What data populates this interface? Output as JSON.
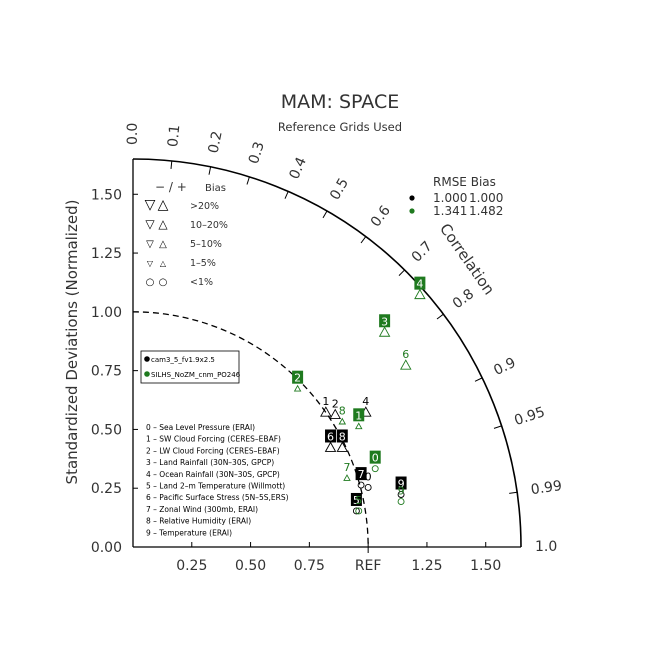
{
  "chart_data": {
    "type": "scatter",
    "subtype": "taylor-diagram",
    "title": "MAM: SPACE",
    "subtitle": "Reference Grids Used",
    "ylabel": "Standardized Deviations (Normalized)",
    "arc_label": "Correlation",
    "ref_label": "REF",
    "std_max": 1.65,
    "x_ticks": [
      "0.25",
      "0.50",
      "0.75",
      "REF",
      "1.25",
      "1.50"
    ],
    "x_tick_values": [
      0.25,
      0.5,
      0.75,
      1.0,
      1.25,
      1.5
    ],
    "y_ticks": [
      "0.00",
      "0.25",
      "0.50",
      "0.75",
      "1.00",
      "1.25",
      "1.50"
    ],
    "y_tick_values": [
      0,
      0.25,
      0.5,
      0.75,
      1.0,
      1.25,
      1.5
    ],
    "corr_ticks": [
      {
        "label": "0.0",
        "value": 0.0
      },
      {
        "label": "0.1",
        "value": 0.1
      },
      {
        "label": "0.2",
        "value": 0.2
      },
      {
        "label": "0.3",
        "value": 0.3
      },
      {
        "label": "0.4",
        "value": 0.4
      },
      {
        "label": "0.5",
        "value": 0.5
      },
      {
        "label": "0.6",
        "value": 0.6
      },
      {
        "label": "0.7",
        "value": 0.7
      },
      {
        "label": "0.8",
        "value": 0.8
      },
      {
        "label": "0.9",
        "value": 0.9
      },
      {
        "label": "0.95",
        "value": 0.95
      },
      {
        "label": "0.99",
        "value": 0.99
      },
      {
        "label": "1.0",
        "value": 1.0
      }
    ],
    "ref_arc_std": 1.0,
    "colors": {
      "black": "#000000",
      "green": "#1f7a1f",
      "box_text": "#ffffff"
    },
    "bias_legend": {
      "header_sign": "− / +",
      "header": "Bias",
      "rows": [
        {
          "label": ">20%",
          "minus": "▽",
          "plus": "△",
          "size": 12
        },
        {
          "label": "10–20%",
          "minus": "▽",
          "plus": "△",
          "size": 10
        },
        {
          "label": "5–10%",
          "minus": "▽",
          "plus": "△",
          "size": 8
        },
        {
          "label": "1–5%",
          "minus": "▽",
          "plus": "△",
          "size": 6
        },
        {
          "label": "<1%",
          "minus": "○",
          "plus": "○",
          "size": 8
        }
      ]
    },
    "rmse_legend": {
      "header": "RMSE  Bias",
      "rows": [
        {
          "color": "#000000",
          "rmse": "1.000",
          "bias": "1.000"
        },
        {
          "color": "#1f7a1f",
          "rmse": "1.341",
          "bias": "1.482"
        }
      ]
    },
    "model_legend": [
      {
        "name": "cam3_5_fv1.9x2.5",
        "color": "#000000"
      },
      {
        "name": "SILHS_NoZM_cnm_PO246",
        "color": "#1f7a1f"
      }
    ],
    "variables": [
      "0 – Sea Level Pressure (ERAI)",
      "1 – SW Cloud Forcing (CERES–EBAF)",
      "2 – LW Cloud Forcing (CERES–EBAF)",
      "3 – Land Rainfall (30N–30S, GPCP)",
      "4 – Ocean Rainfall (30N–30S, GPCP)",
      "5 – Land 2–m Temperature (Willmott)",
      "6 – Pacific Surface Stress (5N–5S,ERS)",
      "7 – Zonal Wind (300mb, ERAI)",
      "8 – Relative Humidity (ERAI)",
      "9 – Temperature (ERAI)"
    ],
    "series": [
      {
        "name": "cam3_5_fv1.9x2.5",
        "color": "#000000",
        "points": [
          {
            "label": "0",
            "x": 1.0,
            "y": 0.3,
            "boxed": false,
            "marker": "circle"
          },
          {
            "label": "1",
            "x": 0.82,
            "y": 0.62,
            "boxed": false,
            "marker": "tri-up"
          },
          {
            "label": "2",
            "x": 0.86,
            "y": 0.61,
            "boxed": false,
            "marker": "tri-up"
          },
          {
            "label": "4",
            "x": 0.99,
            "y": 0.62,
            "boxed": false,
            "marker": "tri-up"
          },
          {
            "label": "5",
            "x": 0.95,
            "y": 0.2,
            "boxed": true,
            "marker": "circle"
          },
          {
            "label": "6",
            "x": 0.84,
            "y": 0.47,
            "boxed": true,
            "marker": "tri-up"
          },
          {
            "label": "7",
            "x": 0.97,
            "y": 0.31,
            "boxed": true,
            "marker": "circle"
          },
          {
            "label": "8",
            "x": 0.89,
            "y": 0.47,
            "boxed": true,
            "marker": "tri-up"
          },
          {
            "label": "9",
            "x": 1.14,
            "y": 0.27,
            "boxed": true,
            "marker": "circle"
          }
        ]
      },
      {
        "name": "SILHS_NoZM_cnm_PO246",
        "color": "#1f7a1f",
        "points": [
          {
            "label": "0",
            "x": 1.03,
            "y": 0.38,
            "boxed": true,
            "marker": "circle"
          },
          {
            "label": "1",
            "x": 0.96,
            "y": 0.56,
            "boxed": true,
            "marker": "tri-up-small"
          },
          {
            "label": "2",
            "x": 0.7,
            "y": 0.72,
            "boxed": true,
            "marker": "tri-up-small"
          },
          {
            "label": "3",
            "x": 1.07,
            "y": 0.96,
            "boxed": true,
            "marker": "tri-up"
          },
          {
            "label": "4",
            "x": 1.22,
            "y": 1.12,
            "boxed": true,
            "marker": "tri-up"
          },
          {
            "label": "5",
            "x": 0.96,
            "y": 0.2,
            "boxed": false,
            "marker": "circle"
          },
          {
            "label": "6",
            "x": 1.16,
            "y": 0.82,
            "boxed": false,
            "marker": "tri-up"
          },
          {
            "label": "7",
            "x": 0.91,
            "y": 0.34,
            "boxed": false,
            "marker": "tri-up-small"
          },
          {
            "label": "8",
            "x": 0.89,
            "y": 0.58,
            "boxed": false,
            "marker": "tri-up-small"
          },
          {
            "label": "9",
            "x": 1.14,
            "y": 0.24,
            "boxed": false,
            "marker": "circle"
          }
        ]
      }
    ]
  }
}
